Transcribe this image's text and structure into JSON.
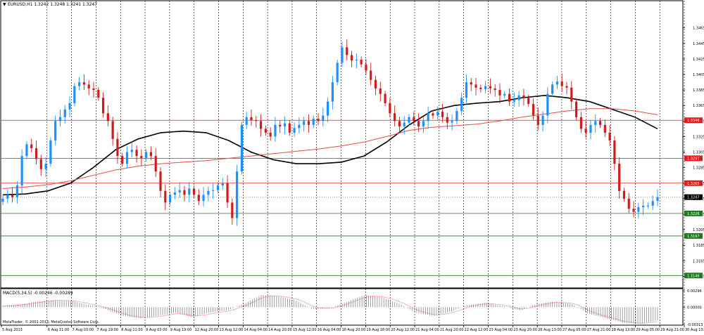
{
  "header": {
    "symbol_title": "EURUSD,H1  1.3242 1.3248 1.3241 1.3247",
    "macd_title": "MACD(5,34,5) -0.00246 -0.00289",
    "copyright": "MetaTrader, © 2001-2013, MetaQuotes Software Corp."
  },
  "colors": {
    "bull": "#1e90ff",
    "bear": "#d21a1a",
    "ma_fast": "#000000",
    "ma_slow": "#e84a4a",
    "resistance": "#e21b1b",
    "support": "#1d7a1d",
    "current": "#000000",
    "macd_hist": "#777777",
    "macd_signal": "#e21b1b"
  },
  "chart_data": [
    {
      "type": "candlestick",
      "symbol": "EURUSD",
      "timeframe": "H1",
      "ohlc_last": {
        "open": 1.3242,
        "high": 1.3248,
        "low": 1.3241,
        "close": 1.3247
      },
      "ylim": [
        1.313,
        1.35
      ],
      "y_ticks": [
        "1.3465",
        "1.3445",
        "1.3425",
        "1.3405",
        "1.3385",
        "1.3365",
        "1.3345",
        "1.3325",
        "1.3305",
        "1.3285",
        "1.3265",
        "1.3245",
        "1.3225",
        "1.3205",
        "1.3185",
        "1.3165",
        "1.3145"
      ],
      "x_ticks": [
        "5 Aug 2013",
        "6 Aug 11:00",
        "7 Aug 03:00",
        "7 Aug 19:00",
        "8 Aug 11:00",
        "9 Aug 03:00",
        "9 Aug 19:00",
        "12 Aug 20:00",
        "13 Aug 12:00",
        "14 Aug 04:00",
        "14 Aug 20:00",
        "15 Aug 12:00",
        "16 Aug 04:00",
        "16 Aug 20:00",
        "19 Aug 18:00",
        "20 Aug 12:00",
        "21 Aug 04:00",
        "21 Aug 20:00",
        "22 Aug 12:00",
        "23 Aug 04:00",
        "23 Aug 20:00",
        "26 Aug 13:00",
        "27 Aug 05:00",
        "27 Aug 21:00",
        "28 Aug 13:00",
        "29 Aug 05:00",
        "29 Aug 21:00",
        "30 Aug 13:00"
      ],
      "close_path": [
        1.3245,
        1.325,
        1.3247,
        1.3262,
        1.33,
        1.3315,
        1.331,
        1.3296,
        1.3283,
        1.329,
        1.332,
        1.3345,
        1.335,
        1.336,
        1.3368,
        1.339,
        1.3395,
        1.3392,
        1.3387,
        1.3385,
        1.3375,
        1.3355,
        1.3345,
        1.3322,
        1.33,
        1.329,
        1.3305,
        1.3308,
        1.33,
        1.3297,
        1.3305,
        1.33,
        1.328,
        1.3255,
        1.324,
        1.325,
        1.3253,
        1.3256,
        1.325,
        1.3258,
        1.325,
        1.3242,
        1.325,
        1.3255,
        1.3256,
        1.3262,
        1.3265,
        1.324,
        1.322,
        1.328,
        1.334,
        1.335,
        1.3346,
        1.3345,
        1.3335,
        1.333,
        1.3325,
        1.334,
        1.3338,
        1.3342,
        1.333,
        1.3336,
        1.334,
        1.3345,
        1.334,
        1.3348,
        1.3345,
        1.3352,
        1.337,
        1.3395,
        1.342,
        1.344,
        1.343,
        1.3423,
        1.3424,
        1.3418,
        1.341,
        1.3398,
        1.3387,
        1.338,
        1.3368,
        1.3355,
        1.3345,
        1.3338,
        1.3343,
        1.335,
        1.3345,
        1.3338,
        1.3345,
        1.3355,
        1.3352,
        1.3357,
        1.335,
        1.3343,
        1.3345,
        1.3358,
        1.3375,
        1.3395,
        1.3392,
        1.3388,
        1.3386,
        1.339,
        1.3387,
        1.3385,
        1.3378,
        1.338,
        1.337,
        1.3372,
        1.3378,
        1.3375,
        1.3367,
        1.3352,
        1.334,
        1.3352,
        1.338,
        1.3392,
        1.3396,
        1.339,
        1.3388,
        1.337,
        1.335,
        1.3335,
        1.333,
        1.334,
        1.3345,
        1.334,
        1.333,
        1.332,
        1.329,
        1.3255,
        1.3245,
        1.3232,
        1.3228,
        1.3234,
        1.3236,
        1.3236,
        1.3242,
        1.3247
      ],
      "price_levels": [
        {
          "value": 1.3346,
          "label": "1.3346",
          "kind": "resistance"
        },
        {
          "value": 1.3297,
          "label": "1.3297",
          "kind": "resistance"
        },
        {
          "value": 1.3265,
          "label": "1.3265",
          "kind": "resistance"
        },
        {
          "value": 1.3247,
          "label": "1.3247",
          "kind": "current"
        },
        {
          "value": 1.3226,
          "label": "1.3226",
          "kind": "support"
        },
        {
          "value": 1.3197,
          "label": "1.3197",
          "kind": "support"
        },
        {
          "value": 1.3146,
          "label": "1.3146",
          "kind": "support"
        }
      ],
      "moving_averages": [
        {
          "color_key": "ma_fast",
          "points": [
            1.325,
            1.3251,
            1.3255,
            1.3265,
            1.3285,
            1.3308,
            1.3322,
            1.333,
            1.3332,
            1.333,
            1.332,
            1.3305,
            1.3295,
            1.329,
            1.329,
            1.3292,
            1.33,
            1.3318,
            1.334,
            1.3358,
            1.3365,
            1.3368,
            1.337,
            1.3375,
            1.3378,
            1.3375,
            1.337,
            1.336,
            1.335,
            1.3335
          ]
        },
        {
          "color_key": "ma_slow",
          "points": [
            1.3258,
            1.326,
            1.3263,
            1.3268,
            1.3275,
            1.3282,
            1.3287,
            1.329,
            1.3292,
            1.3294,
            1.3297,
            1.33,
            1.3303,
            1.3306,
            1.3309,
            1.3313,
            1.3318,
            1.3325,
            1.3333,
            1.3337,
            1.3339,
            1.3341,
            1.3345,
            1.335,
            1.3354,
            1.3358,
            1.3361,
            1.3361,
            1.3358,
            1.3353
          ]
        }
      ]
    },
    {
      "type": "histogram",
      "name": "MACD(5,34,5)",
      "values_last": {
        "main": -0.00246,
        "signal": -0.00289
      },
      "y_ticks": [
        "0.00296",
        "0.00000",
        "-0.00313"
      ],
      "ylim": [
        -0.00313,
        0.00296
      ],
      "profile": [
        0.0002,
        0.0005,
        0.001,
        0.0013,
        0.0011,
        0.0004,
        -0.0004,
        -0.0016,
        -0.002,
        -0.0016,
        -0.001,
        -0.0018,
        -0.001,
        -0.0006,
        0.0006,
        0.0022,
        0.002,
        0.0012,
        -0.0004,
        -0.0002,
        0.001,
        0.0022,
        0.0018,
        0.0006,
        -0.001,
        -0.0016,
        -0.0008,
        0.0004,
        0.0008,
        0.0002,
        -0.0006,
        0.0006,
        0.001,
        0.0006,
        -0.0012,
        -0.002,
        -0.0028,
        -0.003,
        -0.0024
      ]
    }
  ]
}
